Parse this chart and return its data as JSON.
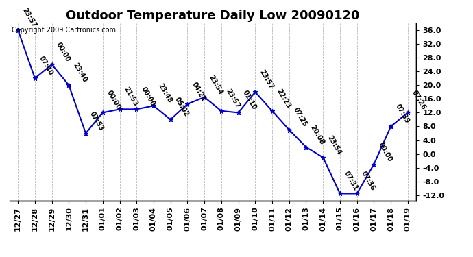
{
  "title": "Outdoor Temperature Daily Low 20090120",
  "copyright": "Copyright 2009 Cartronics.com",
  "dates": [
    "12/27",
    "12/28",
    "12/29",
    "12/30",
    "12/31",
    "01/01",
    "01/02",
    "01/03",
    "01/04",
    "01/05",
    "01/06",
    "01/07",
    "01/08",
    "01/09",
    "01/10",
    "01/11",
    "01/12",
    "01/13",
    "01/14",
    "01/15",
    "01/16",
    "01/17",
    "01/18",
    "01/19"
  ],
  "values": [
    36.0,
    22.0,
    26.0,
    20.0,
    6.0,
    12.0,
    13.0,
    13.0,
    14.0,
    10.0,
    14.5,
    16.5,
    12.5,
    12.0,
    18.0,
    12.5,
    7.0,
    2.0,
    -1.0,
    -11.5,
    -11.5,
    -3.0,
    8.0,
    12.0
  ],
  "annotations": [
    "23:57",
    "07:40",
    "00:00",
    "23:40",
    "07:53",
    "00:00",
    "21:53",
    "00:00",
    "23:48",
    "05:02",
    "04:21",
    "23:54",
    "23:57",
    "01:10",
    "23:57",
    "22:23",
    "07:25",
    "20:08",
    "23:54",
    "07:31",
    "07:36",
    "00:00",
    "07:39",
    "07:26"
  ],
  "line_color": "#0000CC",
  "marker_color": "#0000CC",
  "background_color": "#ffffff",
  "grid_color": "#bbbbbb",
  "ylim": [
    -13.5,
    38.0
  ],
  "yticks": [
    -12.0,
    -8.0,
    -4.0,
    0.0,
    4.0,
    8.0,
    12.0,
    16.0,
    20.0,
    24.0,
    28.0,
    32.0,
    36.0
  ],
  "title_fontsize": 13,
  "annotation_fontsize": 7,
  "copyright_fontsize": 7,
  "tick_fontsize": 8
}
